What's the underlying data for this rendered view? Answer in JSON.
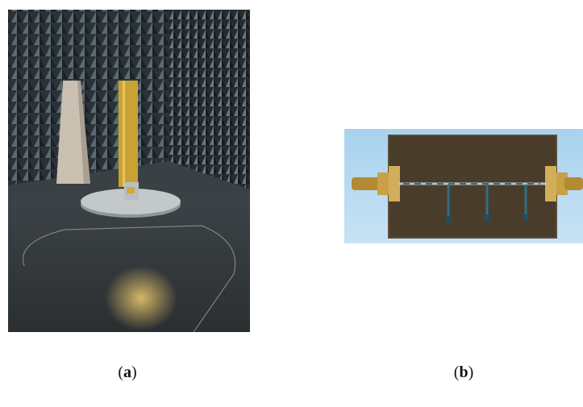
{
  "figure": {
    "panels": [
      {
        "caption": {
          "open": "(",
          "letter": "a",
          "close": ")"
        }
      },
      {
        "caption": {
          "open": "(",
          "letter": "b",
          "close": ")"
        }
      }
    ]
  }
}
